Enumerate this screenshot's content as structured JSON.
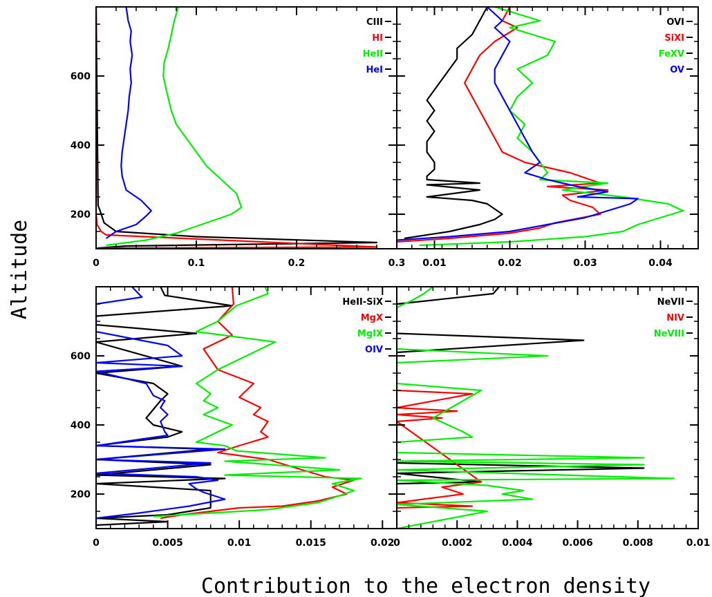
{
  "colors": {
    "black": "#000000",
    "red": "#ff0000",
    "green": "#00ee00",
    "blue": "#0000ff"
  },
  "chart_data": {
    "xlabel": "Contribution to the electron density",
    "ylabel": "Altitude",
    "panels": [
      {
        "type": "line",
        "xlim": [
          0,
          0.3
        ],
        "ylim": [
          100,
          800
        ],
        "xticks": [
          0,
          0.1,
          0.2,
          0.3
        ],
        "xtick_labels": [
          "0",
          "0.1",
          "0.2",
          "0.3"
        ],
        "yticks": [
          200,
          400,
          600
        ],
        "ytick_labels": [
          "200",
          "400",
          "600"
        ],
        "legend_position": "top-right",
        "series": [
          {
            "name": "CIII",
            "color": "#000000",
            "x": [
              0.0,
              0.002,
              0.004,
              0.008,
              0.02,
              0.1,
              0.28,
              0.03,
              0.002,
              0.0
            ],
            "y": [
              800,
              225,
              210,
              175,
              150,
              135,
              118,
              108,
              102,
              100
            ]
          },
          {
            "name": "HI",
            "color": "#ff0000",
            "x": [
              0.0,
              0.0,
              0.001,
              0.005,
              0.01,
              0.28,
              0.02,
              0.0
            ],
            "y": [
              800,
              200,
              170,
              150,
              140,
              105,
              102,
              100
            ]
          },
          {
            "name": "HeII",
            "color": "#00ee00",
            "x": [
              0.082,
              0.078,
              0.075,
              0.072,
              0.068,
              0.067,
              0.07,
              0.075,
              0.08,
              0.09,
              0.1,
              0.11,
              0.125,
              0.14,
              0.145,
              0.135,
              0.12,
              0.1,
              0.08,
              0.05,
              0.01
            ],
            "y": [
              800,
              760,
              720,
              680,
              640,
              600,
              560,
              500,
              460,
              420,
              380,
              340,
              300,
              260,
              220,
              200,
              185,
              165,
              145,
              125,
              110
            ]
          },
          {
            "name": "HeI",
            "color": "#0000ff",
            "x": [
              0.03,
              0.032,
              0.035,
              0.034,
              0.036,
              0.034,
              0.035,
              0.033,
              0.032,
              0.03,
              0.028,
              0.026,
              0.025,
              0.026,
              0.028,
              0.03,
              0.035,
              0.04,
              0.045,
              0.05,
              0.055,
              0.05,
              0.04,
              0.02,
              0.01
            ],
            "y": [
              800,
              760,
              730,
              700,
              660,
              620,
              580,
              540,
              500,
              460,
              420,
              380,
              340,
              310,
              290,
              270,
              260,
              250,
              240,
              225,
              210,
              195,
              170,
              150,
              130
            ]
          }
        ]
      },
      {
        "type": "line",
        "xlim": [
          0.005,
          0.045
        ],
        "ylim": [
          100,
          800
        ],
        "xticks": [
          0.01,
          0.02,
          0.03,
          0.04
        ],
        "xtick_labels": [
          "0.01",
          "0.02",
          "0.03",
          "0.04"
        ],
        "yticks": [
          200,
          400,
          600
        ],
        "ytick_labels": [
          "",
          "",
          ""
        ],
        "legend_position": "top-right",
        "series": [
          {
            "name": "OVI",
            "color": "#000000",
            "x": [
              0.017,
              0.016,
              0.015,
              0.013,
              0.013,
              0.012,
              0.011,
              0.01,
              0.009,
              0.01,
              0.009,
              0.01,
              0.009,
              0.009,
              0.01,
              0.01,
              0.009,
              0.009,
              0.016,
              0.009,
              0.016,
              0.009,
              0.015,
              0.017,
              0.018,
              0.019,
              0.018,
              0.016,
              0.012,
              0.006
            ],
            "y": [
              800,
              760,
              720,
              680,
              650,
              620,
              590,
              560,
              530,
              500,
              470,
              440,
              410,
              380,
              350,
              330,
              310,
              300,
              290,
              285,
              270,
              250,
              240,
              230,
              215,
              200,
              185,
              170,
              150,
              130
            ]
          },
          {
            "name": "SiXI",
            "color": "#ff0000",
            "x": [
              0.02,
              0.019,
              0.021,
              0.018,
              0.016,
              0.015,
              0.014,
              0.015,
              0.016,
              0.017,
              0.018,
              0.019,
              0.022,
              0.028,
              0.032,
              0.025,
              0.033,
              0.027,
              0.028,
              0.031,
              0.032,
              0.026,
              0.024,
              0.02,
              0.012,
              0.005
            ],
            "y": [
              800,
              760,
              740,
              700,
              660,
              620,
              580,
              540,
              500,
              460,
              420,
              380,
              350,
              320,
              290,
              280,
              270,
              255,
              240,
              220,
              200,
              175,
              160,
              145,
              130,
              120
            ]
          },
          {
            "name": "FeXV",
            "color": "#00ee00",
            "x": [
              0.018,
              0.024,
              0.02,
              0.026,
              0.025,
              0.021,
              0.023,
              0.021,
              0.02,
              0.022,
              0.021,
              0.023,
              0.024,
              0.025,
              0.024,
              0.033,
              0.027,
              0.035,
              0.041,
              0.043,
              0.04,
              0.037,
              0.035,
              0.03,
              0.02,
              0.008
            ],
            "y": [
              800,
              760,
              740,
              700,
              660,
              620,
              580,
              540,
              500,
              460,
              420,
              380,
              350,
              320,
              300,
              290,
              270,
              250,
              230,
              210,
              190,
              170,
              150,
              135,
              120,
              110
            ]
          },
          {
            "name": "OV",
            "color": "#0000ff",
            "x": [
              0.017,
              0.019,
              0.018,
              0.02,
              0.019,
              0.018,
              0.018,
              0.019,
              0.02,
              0.021,
              0.022,
              0.023,
              0.024,
              0.022,
              0.025,
              0.029,
              0.033,
              0.029,
              0.037,
              0.036,
              0.033,
              0.03,
              0.025,
              0.02,
              0.012,
              0.005
            ],
            "y": [
              800,
              760,
              740,
              700,
              660,
              620,
              580,
              540,
              500,
              460,
              420,
              380,
              350,
              320,
              300,
              280,
              265,
              250,
              245,
              230,
              210,
              190,
              170,
              150,
              135,
              125
            ]
          }
        ]
      },
      {
        "type": "line",
        "xlim": [
          0,
          0.021
        ],
        "ylim": [
          100,
          800
        ],
        "xticks": [
          0,
          0.005,
          0.01,
          0.015,
          0.02
        ],
        "xtick_labels": [
          "0",
          "0.005",
          "0.01",
          "0.015",
          "0.02"
        ],
        "yticks": [
          200,
          400,
          600
        ],
        "ytick_labels": [
          "200",
          "400",
          "600"
        ],
        "legend_position": "top-right",
        "series": [
          {
            "name": "HeII-SiX",
            "color": "#000000",
            "x": [
              0.0045,
              0.0048,
              0.0095,
              0.0,
              0.0,
              0.007,
              0.0,
              0.006,
              0.0,
              0.004,
              0.005,
              0.0045,
              0.0035,
              0.004,
              0.006,
              0.005,
              0.0,
              0.008,
              0.0,
              0.008,
              0.0,
              0.009,
              0.0,
              0.008,
              0.008,
              0.005,
              0.0,
              0.005,
              0.0
            ],
            "y": [
              800,
              775,
              745,
              715,
              690,
              665,
              640,
              570,
              550,
              520,
              490,
              470,
              420,
              400,
              380,
              365,
              340,
              330,
              300,
              285,
              255,
              245,
              230,
              210,
              160,
              140,
              130,
              120,
              110
            ]
          },
          {
            "name": "MgX",
            "color": "#ff0000",
            "x": [
              0.0095,
              0.0096,
              0.0085,
              0.0095,
              0.0075,
              0.0085,
              0.011,
              0.01,
              0.0115,
              0.011,
              0.012,
              0.0115,
              0.012,
              0.01,
              0.0085,
              0.012,
              0.016,
              0.018,
              0.0165,
              0.0175,
              0.0155,
              0.013,
              0.01,
              0.008,
              0.006,
              0.0045
            ],
            "y": [
              800,
              750,
              700,
              660,
              620,
              560,
              520,
              480,
              450,
              430,
              410,
              380,
              365,
              340,
              320,
              300,
              250,
              240,
              220,
              200,
              180,
              165,
              160,
              150,
              140,
              130
            ]
          },
          {
            "name": "MgIX",
            "color": "#00ee00",
            "x": [
              0.0118,
              0.012,
              0.0098,
              0.0085,
              0.007,
              0.0125,
              0.0085,
              0.007,
              0.008,
              0.0075,
              0.0085,
              0.0075,
              0.0095,
              0.007,
              0.009,
              0.0098,
              0.016,
              0.009,
              0.017,
              0.009,
              0.0185,
              0.0165,
              0.018,
              0.017,
              0.0155,
              0.012,
              0.008,
              0.004
            ],
            "y": [
              800,
              780,
              745,
              700,
              670,
              640,
              560,
              520,
              490,
              470,
              450,
              430,
              400,
              350,
              340,
              325,
              305,
              295,
              270,
              255,
              245,
              230,
              210,
              195,
              175,
              155,
              145,
              135
            ]
          },
          {
            "name": "OIV",
            "color": "#0000ff",
            "x": [
              0.0025,
              0.0032,
              0.0,
              0.0,
              0.005,
              0.006,
              0.0,
              0.006,
              0.0,
              0.0035,
              0.004,
              0.0048,
              0.0045,
              0.005,
              0.0045,
              0.0048,
              0.005,
              0.0,
              0.009,
              0.0,
              0.008,
              0.0,
              0.007,
              0.0085,
              0.0065,
              0.007,
              0.0075,
              0.009,
              0.0065,
              0.003,
              0.0,
              0.0
            ],
            "y": [
              800,
              770,
              750,
              670,
              630,
              600,
              580,
              570,
              555,
              520,
              485,
              470,
              450,
              430,
              410,
              380,
              370,
              340,
              330,
              300,
              290,
              260,
              250,
              240,
              230,
              215,
              205,
              185,
              165,
              145,
              130,
              100
            ]
          }
        ]
      },
      {
        "type": "line",
        "xlim": [
          0,
          0.01
        ],
        "ylim": [
          100,
          800
        ],
        "xticks": [
          0,
          0.002,
          0.004,
          0.006,
          0.008,
          0.01
        ],
        "xtick_labels": [
          "0",
          "0.002",
          "0.004",
          "0.006",
          "0.008",
          "0.01"
        ],
        "yticks": [
          200,
          400,
          600
        ],
        "ytick_labels": [
          "",
          "",
          ""
        ],
        "legend_position": "top-right",
        "series": [
          {
            "name": "NeVII",
            "color": "#000000",
            "x": [
              0.0034,
              0.0032,
              0.0,
              0.0,
              0.0062,
              0.0,
              0.0,
              0.0082,
              0.0,
              0.0028,
              0.0,
              0.0
            ],
            "y": [
              800,
              780,
              750,
              665,
              645,
              610,
              290,
              275,
              260,
              235,
              230,
              100
            ]
          },
          {
            "name": "NIV",
            "color": "#ff0000",
            "x": [
              0.0,
              0.0,
              0.0025,
              0.0,
              0.002,
              0.0,
              0.0015,
              0.0,
              0.0028,
              0.0015,
              0.0022,
              0.0,
              0.0025,
              0.0
            ],
            "y": [
              510,
              500,
              490,
              450,
              440,
              430,
              420,
              410,
              235,
              220,
              200,
              175,
              165,
              160
            ]
          },
          {
            "name": "NeVIII",
            "color": "#00ee00",
            "x": [
              0.0012,
              0.0009,
              0.0005,
              0.0,
              0.0,
              0.005,
              0.0,
              0.0,
              0.0028,
              0.0018,
              0.0012,
              0.0022,
              0.0025,
              0.0,
              0.0,
              0.0082,
              0.0,
              0.0082,
              0.0,
              0.0092,
              0.0,
              0.003,
              0.0042,
              0.0035,
              0.0045,
              0.0,
              0.003,
              0.0
            ],
            "y": [
              800,
              780,
              760,
              740,
              620,
              600,
              580,
              520,
              500,
              450,
              420,
              380,
              365,
              350,
              320,
              305,
              295,
              285,
              270,
              245,
              240,
              225,
              210,
              200,
              185,
              170,
              150,
              100
            ]
          }
        ]
      }
    ]
  }
}
